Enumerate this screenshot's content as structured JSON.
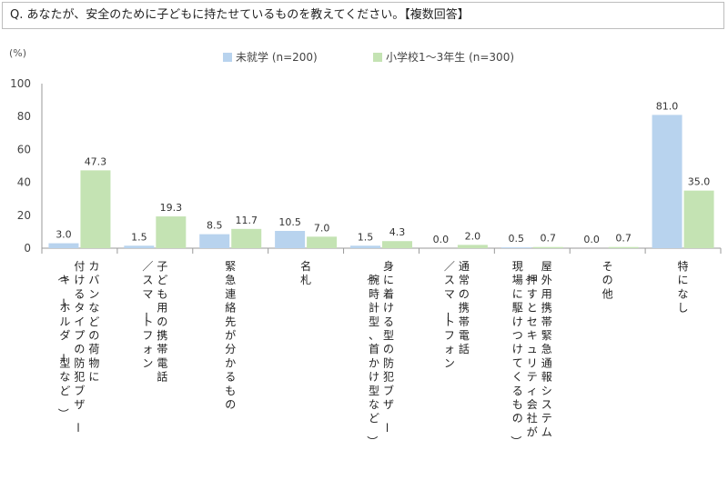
{
  "question": "Q. あなたが、安全のために子どもに持たせているものを教えてください。【複数回答】",
  "chart_data": {
    "type": "bar",
    "unit_label": "(%)",
    "ylim": [
      0,
      100
    ],
    "yticks": [
      0,
      20,
      40,
      60,
      80,
      100
    ],
    "legend_position": "top",
    "series": [
      {
        "name": "未就学 (n=200)",
        "color": "#b8d3ee",
        "values": [
          3.0,
          1.5,
          8.5,
          10.5,
          1.5,
          0.0,
          0.5,
          0.0,
          81.0
        ]
      },
      {
        "name": "小学校1〜3年生 (n=300)",
        "color": "#c4e3b3",
        "values": [
          47.3,
          19.3,
          11.7,
          7.0,
          4.3,
          2.0,
          0.7,
          0.7,
          35.0
        ]
      }
    ],
    "categories": [
      "カバンなどの荷物に付けるタイプの防犯ブザー（キーホルダー型など）",
      "子ども用の携帯電話／スマートフォン",
      "緊急連絡先が分かるもの",
      "名札",
      "身に着ける型の防犯ブザー（腕時計型、首かけ型など）",
      "通常の携帯電話／スマートフォン",
      "屋外用携帯緊急通報システム（押すとセキュリティ会社が現場に駆けつけてくるもの）",
      "その他",
      "特になし"
    ],
    "category_columns": [
      [
        "カバンなどの荷物に",
        "付けるタイプの防犯ブザー",
        "（キーホルダー型など）"
      ],
      [
        "子ども用の携帯電話",
        "／スマートフォン"
      ],
      [
        "緊急連絡先が分かるもの"
      ],
      [
        "名札"
      ],
      [
        "身に着ける型の防犯ブザー",
        "（腕時計型、首かけ型など）"
      ],
      [
        "通常の携帯電話",
        "／スマートフォン"
      ],
      [
        "屋外用携帯緊急通報システム",
        "（押すとセキュリティ会社が",
        "現場に駆けつけてくるもの）"
      ],
      [
        "その他"
      ],
      [
        "特になし"
      ]
    ]
  }
}
